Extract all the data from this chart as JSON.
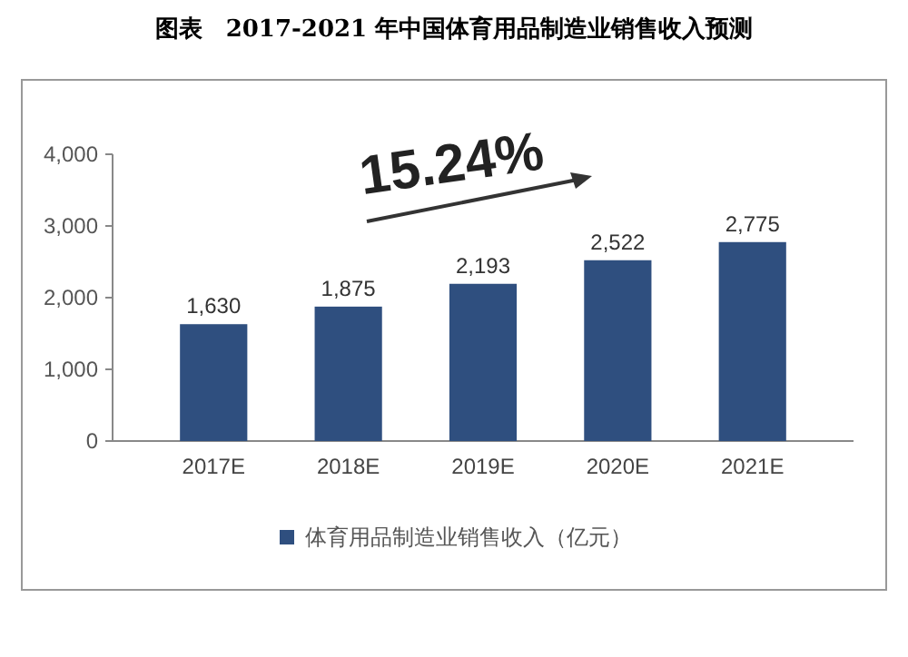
{
  "chart_data": {
    "type": "bar",
    "title": "图表　2017-2021 年中国体育用品制造业销售收入预测",
    "categories": [
      "2017E",
      "2018E",
      "2019E",
      "2020E",
      "2021E"
    ],
    "series": [
      {
        "name": "体育用品制造业销售收入（亿元）",
        "color": "#2f4f7f",
        "values": [
          1630,
          1875,
          2193,
          2522,
          2775
        ]
      }
    ],
    "ylim": [
      0,
      4000
    ],
    "yticks": [
      {
        "value": 0,
        "label": "0"
      },
      {
        "value": 1000,
        "label": "1,000"
      },
      {
        "value": 2000,
        "label": "2,000"
      },
      {
        "value": 3000,
        "label": "3,000"
      },
      {
        "value": 4000,
        "label": "4,000"
      }
    ],
    "value_labels": [
      [
        "1,630",
        "1,875",
        "2,193",
        "2,522",
        "2,775"
      ]
    ],
    "annotations": [
      "15.24%"
    ],
    "legend": "bottom",
    "grid": false
  }
}
